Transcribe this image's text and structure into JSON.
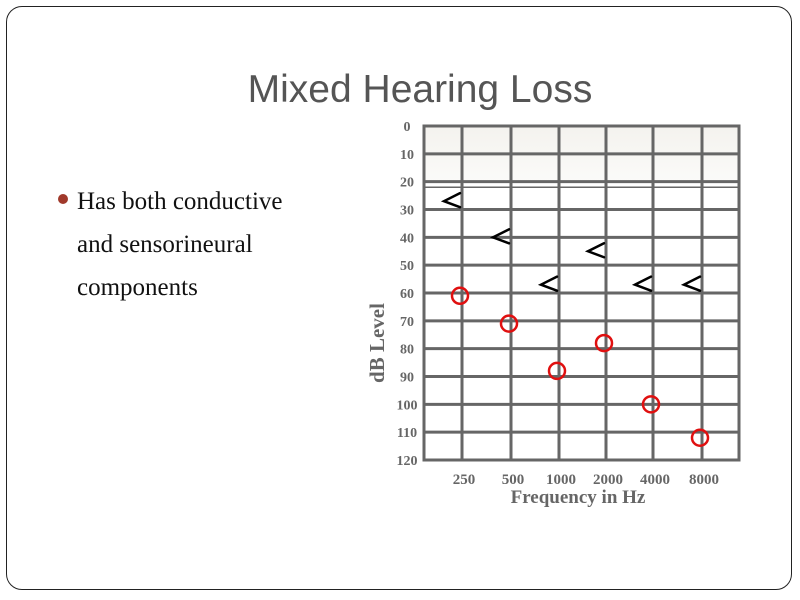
{
  "slide": {
    "title": "Mixed Hearing Loss",
    "bullets": [
      {
        "lines": [
          "Has both conductive",
          "and sensorineural",
          "components"
        ]
      }
    ],
    "bullet_color": "#a0392b"
  },
  "chart_data": {
    "type": "scatter",
    "title": "",
    "xlabel": "Frequency in Hz",
    "ylabel": "dB Level",
    "categories": [
      "250",
      "500",
      "1000",
      "2000",
      "4000",
      "8000"
    ],
    "yticks": [
      "0",
      "10",
      "20",
      "30",
      "40",
      "50",
      "60",
      "70",
      "80",
      "90",
      "100",
      "110",
      "120"
    ],
    "ylim": [
      0,
      120
    ],
    "y_inverted": true,
    "grid": true,
    "shaded_band": [
      0,
      20
    ],
    "series": [
      {
        "marker": "<",
        "color": "#000000",
        "values": [
          27,
          40,
          57,
          45,
          57,
          57
        ]
      },
      {
        "marker": "circle",
        "color": "#e01010",
        "values": [
          61,
          71,
          88,
          78,
          100,
          112
        ]
      }
    ]
  }
}
